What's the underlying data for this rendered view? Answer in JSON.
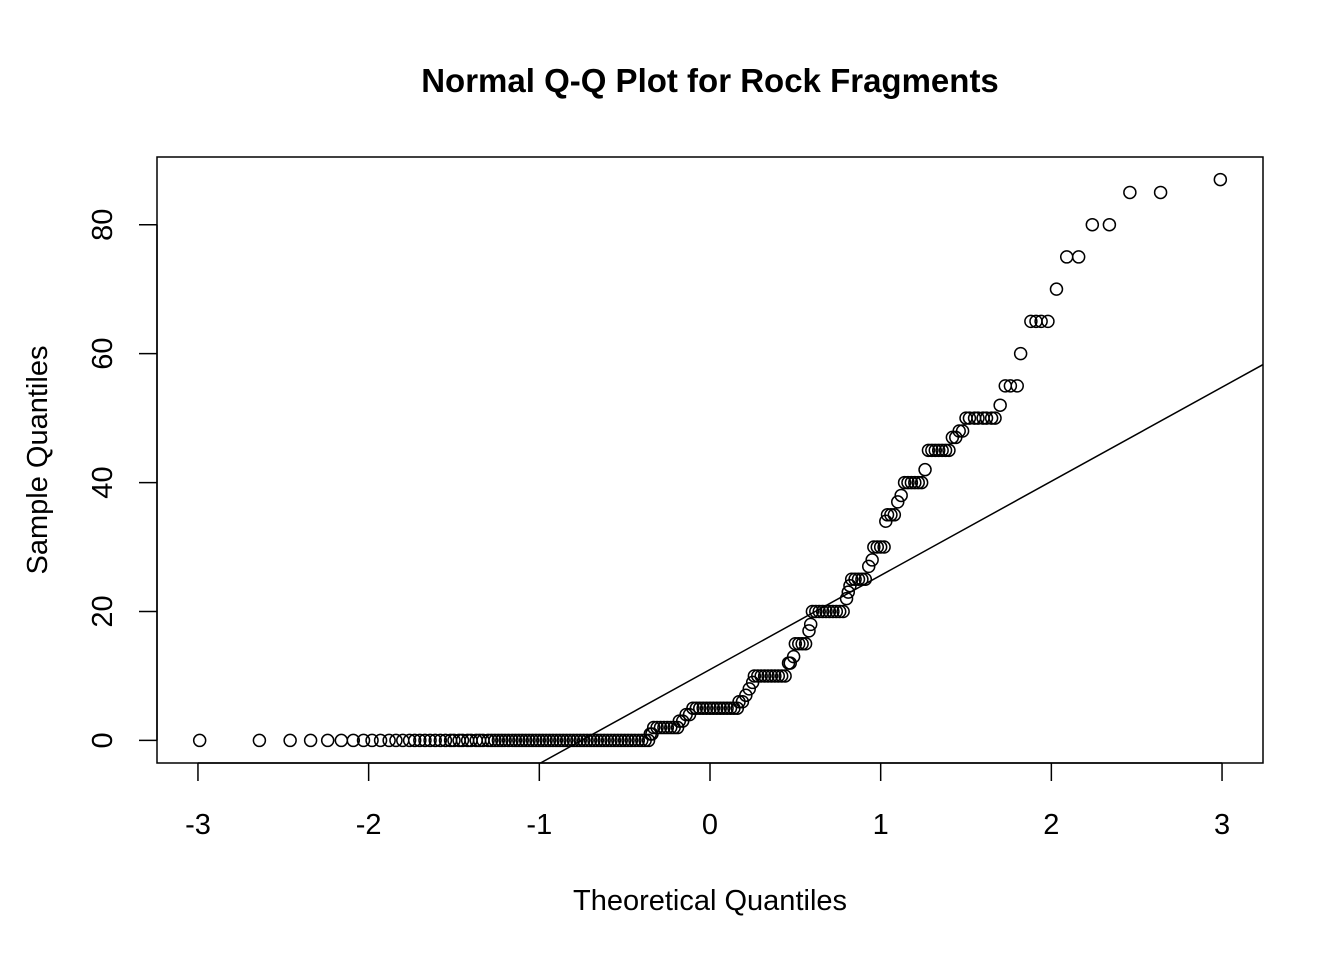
{
  "chart_data": {
    "type": "scatter",
    "title": "Normal Q-Q Plot for Rock Fragments",
    "xlabel": "Theoretical Quantiles",
    "ylabel": "Sample Quantiles",
    "xlim": [
      -3.24,
      3.24
    ],
    "ylim": [
      -3.5,
      90.5
    ],
    "xticks": [
      -3,
      -2,
      -1,
      0,
      1,
      2,
      3
    ],
    "yticks": [
      0,
      20,
      40,
      60,
      80
    ],
    "xtick_labels": [
      "-3",
      "-2",
      "-1",
      "0",
      "1",
      "2",
      "3"
    ],
    "ytick_labels": [
      "0",
      "20",
      "40",
      "60",
      "80"
    ],
    "grid": false,
    "legend": "none",
    "marker": "open-circle",
    "reference_line": {
      "type": "qqline",
      "points": [
        [
          -1,
          -3.6
        ],
        [
          3.24,
          58.3
        ]
      ]
    },
    "series": [
      {
        "points": [
          [
            -2.99,
            0
          ],
          [
            -2.64,
            0
          ],
          [
            -2.46,
            0
          ],
          [
            -2.34,
            0
          ],
          [
            -2.24,
            0
          ],
          [
            -2.16,
            0
          ],
          [
            -2.09,
            0
          ],
          [
            -2.03,
            0
          ],
          [
            -1.98,
            0
          ],
          [
            -1.93,
            0
          ],
          [
            -1.88,
            0
          ],
          [
            -1.84,
            0
          ],
          [
            -1.8,
            0
          ],
          [
            -1.76,
            0
          ],
          [
            -1.73,
            0
          ],
          [
            -1.7,
            0
          ],
          [
            -1.67,
            0
          ],
          [
            -1.64,
            0
          ],
          [
            -1.61,
            0
          ],
          [
            -1.58,
            0
          ],
          [
            -1.55,
            0
          ],
          [
            -1.52,
            0
          ],
          [
            -1.5,
            0
          ],
          [
            -1.47,
            0
          ],
          [
            -1.45,
            0
          ],
          [
            -1.42,
            0
          ],
          [
            -1.4,
            0
          ],
          [
            -1.37,
            0
          ],
          [
            -1.35,
            0
          ],
          [
            -1.33,
            0
          ],
          [
            -1.3,
            0
          ],
          [
            -1.28,
            0
          ],
          [
            -1.26,
            0
          ],
          [
            -1.24,
            0
          ],
          [
            -1.22,
            0
          ],
          [
            -1.2,
            0
          ],
          [
            -1.18,
            0
          ],
          [
            -1.16,
            0
          ],
          [
            -1.14,
            0
          ],
          [
            -1.12,
            0
          ],
          [
            -1.1,
            0
          ],
          [
            -1.08,
            0
          ],
          [
            -1.06,
            0
          ],
          [
            -1.04,
            0
          ],
          [
            -1.02,
            0
          ],
          [
            -1.0,
            0
          ],
          [
            -0.98,
            0
          ],
          [
            -0.96,
            0
          ],
          [
            -0.94,
            0
          ],
          [
            -0.92,
            0
          ],
          [
            -0.9,
            0
          ],
          [
            -0.88,
            0
          ],
          [
            -0.86,
            0
          ],
          [
            -0.84,
            0
          ],
          [
            -0.82,
            0
          ],
          [
            -0.8,
            0
          ],
          [
            -0.78,
            0
          ],
          [
            -0.76,
            0
          ],
          [
            -0.74,
            0
          ],
          [
            -0.72,
            0
          ],
          [
            -0.7,
            0
          ],
          [
            -0.68,
            0
          ],
          [
            -0.66,
            0
          ],
          [
            -0.64,
            0
          ],
          [
            -0.62,
            0
          ],
          [
            -0.6,
            0
          ],
          [
            -0.58,
            0
          ],
          [
            -0.56,
            0
          ],
          [
            -0.54,
            0
          ],
          [
            -0.52,
            0
          ],
          [
            -0.5,
            0
          ],
          [
            -0.48,
            0
          ],
          [
            -0.46,
            0
          ],
          [
            -0.44,
            0
          ],
          [
            -0.42,
            0
          ],
          [
            -0.4,
            0
          ],
          [
            -0.38,
            0
          ],
          [
            -0.36,
            0
          ],
          [
            -0.35,
            1
          ],
          [
            -0.34,
            1
          ],
          [
            -0.33,
            2
          ],
          [
            -0.31,
            2
          ],
          [
            -0.29,
            2
          ],
          [
            -0.27,
            2
          ],
          [
            -0.25,
            2
          ],
          [
            -0.23,
            2
          ],
          [
            -0.21,
            2
          ],
          [
            -0.19,
            2
          ],
          [
            -0.18,
            3
          ],
          [
            -0.16,
            3
          ],
          [
            -0.14,
            4
          ],
          [
            -0.12,
            4
          ],
          [
            -0.1,
            5
          ],
          [
            -0.08,
            5
          ],
          [
            -0.06,
            5
          ],
          [
            -0.04,
            5
          ],
          [
            -0.02,
            5
          ],
          [
            0.0,
            5
          ],
          [
            0.02,
            5
          ],
          [
            0.04,
            5
          ],
          [
            0.06,
            5
          ],
          [
            0.08,
            5
          ],
          [
            0.1,
            5
          ],
          [
            0.12,
            5
          ],
          [
            0.14,
            5
          ],
          [
            0.16,
            5
          ],
          [
            0.17,
            6
          ],
          [
            0.19,
            6
          ],
          [
            0.21,
            7
          ],
          [
            0.23,
            8
          ],
          [
            0.25,
            9
          ],
          [
            0.26,
            10
          ],
          [
            0.28,
            10
          ],
          [
            0.3,
            10
          ],
          [
            0.32,
            10
          ],
          [
            0.34,
            10
          ],
          [
            0.36,
            10
          ],
          [
            0.38,
            10
          ],
          [
            0.4,
            10
          ],
          [
            0.42,
            10
          ],
          [
            0.44,
            10
          ],
          [
            0.46,
            12
          ],
          [
            0.47,
            12
          ],
          [
            0.49,
            13
          ],
          [
            0.5,
            15
          ],
          [
            0.52,
            15
          ],
          [
            0.54,
            15
          ],
          [
            0.56,
            15
          ],
          [
            0.58,
            17
          ],
          [
            0.59,
            18
          ],
          [
            0.6,
            20
          ],
          [
            0.62,
            20
          ],
          [
            0.64,
            20
          ],
          [
            0.66,
            20
          ],
          [
            0.68,
            20
          ],
          [
            0.7,
            20
          ],
          [
            0.72,
            20
          ],
          [
            0.74,
            20
          ],
          [
            0.76,
            20
          ],
          [
            0.78,
            20
          ],
          [
            0.8,
            22
          ],
          [
            0.81,
            23
          ],
          [
            0.82,
            24
          ],
          [
            0.83,
            25
          ],
          [
            0.85,
            25
          ],
          [
            0.87,
            25
          ],
          [
            0.89,
            25
          ],
          [
            0.91,
            25
          ],
          [
            0.93,
            27
          ],
          [
            0.95,
            28
          ],
          [
            0.96,
            30
          ],
          [
            0.98,
            30
          ],
          [
            1.0,
            30
          ],
          [
            1.02,
            30
          ],
          [
            1.03,
            34
          ],
          [
            1.04,
            35
          ],
          [
            1.06,
            35
          ],
          [
            1.08,
            35
          ],
          [
            1.1,
            37
          ],
          [
            1.12,
            38
          ],
          [
            1.14,
            40
          ],
          [
            1.16,
            40
          ],
          [
            1.18,
            40
          ],
          [
            1.2,
            40
          ],
          [
            1.22,
            40
          ],
          [
            1.24,
            40
          ],
          [
            1.26,
            42
          ],
          [
            1.28,
            45
          ],
          [
            1.3,
            45
          ],
          [
            1.32,
            45
          ],
          [
            1.34,
            45
          ],
          [
            1.36,
            45
          ],
          [
            1.38,
            45
          ],
          [
            1.4,
            45
          ],
          [
            1.42,
            47
          ],
          [
            1.44,
            47
          ],
          [
            1.46,
            48
          ],
          [
            1.48,
            48
          ],
          [
            1.5,
            50
          ],
          [
            1.52,
            50
          ],
          [
            1.55,
            50
          ],
          [
            1.57,
            50
          ],
          [
            1.6,
            50
          ],
          [
            1.62,
            50
          ],
          [
            1.65,
            50
          ],
          [
            1.67,
            50
          ],
          [
            1.7,
            52
          ],
          [
            1.73,
            55
          ],
          [
            1.76,
            55
          ],
          [
            1.8,
            55
          ],
          [
            1.82,
            60
          ],
          [
            1.88,
            65
          ],
          [
            1.91,
            65
          ],
          [
            1.94,
            65
          ],
          [
            1.98,
            65
          ],
          [
            2.03,
            70
          ],
          [
            2.09,
            75
          ],
          [
            2.16,
            75
          ],
          [
            2.24,
            80
          ],
          [
            2.34,
            80
          ],
          [
            2.46,
            85
          ],
          [
            2.64,
            85
          ],
          [
            2.99,
            87
          ]
        ]
      }
    ]
  }
}
